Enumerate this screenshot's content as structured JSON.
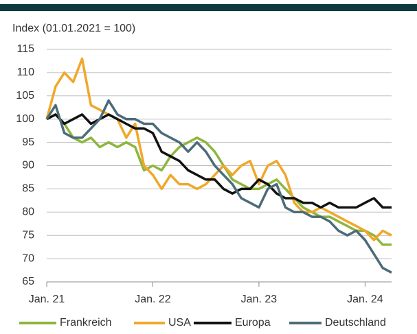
{
  "chart_data": {
    "type": "line",
    "title": "Index (01.01.2021 = 100)",
    "x": [
      "2021-01",
      "2021-02",
      "2021-03",
      "2021-04",
      "2021-05",
      "2021-06",
      "2021-07",
      "2021-08",
      "2021-09",
      "2021-10",
      "2021-11",
      "2021-12",
      "2022-01",
      "2022-02",
      "2022-03",
      "2022-04",
      "2022-05",
      "2022-06",
      "2022-07",
      "2022-08",
      "2022-09",
      "2022-10",
      "2022-11",
      "2022-12",
      "2023-01",
      "2023-02",
      "2023-03",
      "2023-04",
      "2023-05",
      "2023-06",
      "2023-07",
      "2023-08",
      "2023-09",
      "2023-10",
      "2023-11",
      "2023-12",
      "2024-01",
      "2024-02",
      "2024-03",
      "2024-04"
    ],
    "series": [
      {
        "name": "Frankreich",
        "color": "#8db63c",
        "values": [
          100,
          101,
          99,
          96,
          95,
          96,
          94,
          95,
          94,
          95,
          94,
          89,
          90,
          89,
          92,
          94,
          95,
          96,
          95,
          93,
          90,
          87,
          86,
          85,
          85,
          86,
          87,
          85,
          83,
          81,
          80,
          79,
          79,
          78,
          77,
          76,
          76,
          75,
          73,
          73
        ]
      },
      {
        "name": "USA",
        "color": "#f0a72a",
        "values": [
          100,
          107,
          110,
          108,
          113,
          103,
          102,
          101,
          100,
          96,
          99,
          90,
          88,
          85,
          88,
          86,
          86,
          85,
          86,
          88,
          90,
          88,
          90,
          91,
          86,
          90,
          91,
          88,
          82,
          80,
          80,
          81,
          80,
          79,
          78,
          77,
          76,
          74,
          76,
          75
        ]
      },
      {
        "name": "Europa",
        "color": "#111111",
        "values": [
          100,
          101,
          99,
          100,
          101,
          99,
          100,
          101,
          100,
          99,
          98,
          98,
          97,
          93,
          92,
          91,
          89,
          88,
          87,
          87,
          85,
          84,
          85,
          85,
          87,
          86,
          84,
          83,
          83,
          82,
          82,
          81,
          82,
          81,
          81,
          81,
          82,
          83,
          81,
          81
        ]
      },
      {
        "name": "Deutschland",
        "color": "#4b6b78",
        "values": [
          100,
          103,
          97,
          96,
          96,
          98,
          100,
          104,
          101,
          100,
          100,
          99,
          99,
          97,
          96,
          95,
          93,
          95,
          93,
          90,
          88,
          86,
          83,
          82,
          81,
          85,
          86,
          81,
          80,
          80,
          79,
          79,
          78,
          76,
          75,
          76,
          74,
          71,
          68,
          67
        ]
      }
    ],
    "xlim": [
      "2021-01",
      "2024-04"
    ],
    "xticks": [
      {
        "value": "2021-01",
        "label": "Jan. 21"
      },
      {
        "value": "2022-01",
        "label": "Jan. 22"
      },
      {
        "value": "2023-01",
        "label": "Jan. 23"
      },
      {
        "value": "2024-01",
        "label": "Jan. 24"
      }
    ],
    "ylim": [
      65,
      115
    ],
    "yticks": [
      65,
      70,
      75,
      80,
      85,
      90,
      95,
      100,
      105,
      110,
      115
    ],
    "grid": true
  }
}
